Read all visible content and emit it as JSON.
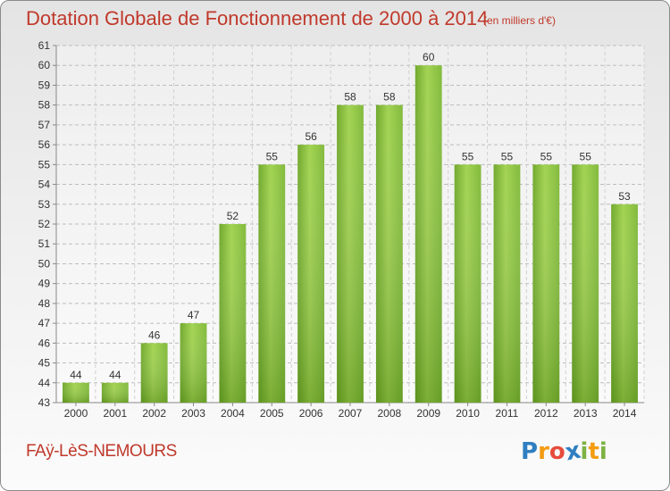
{
  "chart_data": {
    "type": "bar",
    "title": "Dotation Globale de Fonctionnement de 2000 à 2014",
    "unit": "(en milliers d'€)",
    "categories": [
      "2000",
      "2001",
      "2002",
      "2003",
      "2004",
      "2005",
      "2006",
      "2007",
      "2008",
      "2009",
      "2010",
      "2011",
      "2012",
      "2013",
      "2014"
    ],
    "values": [
      44,
      44,
      46,
      47,
      52,
      55,
      56,
      58,
      58,
      60,
      55,
      55,
      55,
      55,
      53
    ],
    "ylim": [
      43,
      61
    ],
    "yticks": [
      43,
      44,
      45,
      46,
      47,
      48,
      49,
      50,
      51,
      52,
      53,
      54,
      55,
      56,
      57,
      58,
      59,
      60,
      61
    ],
    "xlabel": "",
    "ylabel": "",
    "grid": true,
    "bar_color": "#8cc63f"
  },
  "footer": {
    "town": "FAÿ-LèS-NEMOURS",
    "logo_letters": [
      "P",
      "r",
      "o",
      "x",
      "i",
      "t",
      "i"
    ],
    "logo_colors": [
      "#2f7fc1",
      "#f39c12",
      "#e74c3c",
      "#2f7fc1",
      "#7cb342",
      "#f39c12",
      "#7cb342"
    ]
  }
}
